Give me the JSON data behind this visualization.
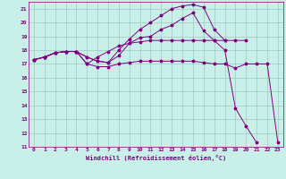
{
  "bg_color": "#c8f0e8",
  "grid_color": "#a0c8c0",
  "line_color": "#800080",
  "xlabel": "Windchill (Refroidissement éolien,°C)",
  "xlim": [
    -0.5,
    23.5
  ],
  "ylim": [
    11,
    21.5
  ],
  "yticks": [
    11,
    12,
    13,
    14,
    15,
    16,
    17,
    18,
    19,
    20,
    21
  ],
  "xticks": [
    0,
    1,
    2,
    3,
    4,
    5,
    6,
    7,
    8,
    9,
    10,
    11,
    12,
    13,
    14,
    15,
    16,
    17,
    18,
    19,
    20,
    21,
    22,
    23
  ],
  "series": [
    [
      17.3,
      17.5,
      17.8,
      17.9,
      17.9,
      17.0,
      16.8,
      16.8,
      17.0,
      17.1,
      17.2,
      17.2,
      17.2,
      17.2,
      17.2,
      17.2,
      17.1,
      17.0,
      17.0,
      16.7,
      17.0,
      17.0,
      17.0,
      11.3
    ],
    [
      17.3,
      17.5,
      17.8,
      17.9,
      17.9,
      17.0,
      17.5,
      17.9,
      18.3,
      18.5,
      18.6,
      18.7,
      18.7,
      18.7,
      18.7,
      18.7,
      18.7,
      18.7,
      18.0,
      13.8,
      12.5,
      11.3,
      null,
      null
    ],
    [
      17.3,
      17.5,
      17.8,
      17.9,
      17.9,
      17.5,
      17.2,
      17.1,
      17.6,
      18.5,
      18.9,
      19.0,
      19.5,
      19.8,
      20.3,
      20.7,
      19.4,
      18.7,
      18.7,
      18.7,
      18.7,
      null,
      null,
      null
    ],
    [
      17.3,
      17.5,
      17.8,
      17.9,
      17.9,
      17.5,
      17.2,
      17.1,
      18.0,
      18.8,
      19.5,
      20.0,
      20.5,
      21.0,
      21.2,
      21.3,
      21.1,
      19.5,
      18.7,
      null,
      null,
      null,
      null,
      null
    ]
  ]
}
